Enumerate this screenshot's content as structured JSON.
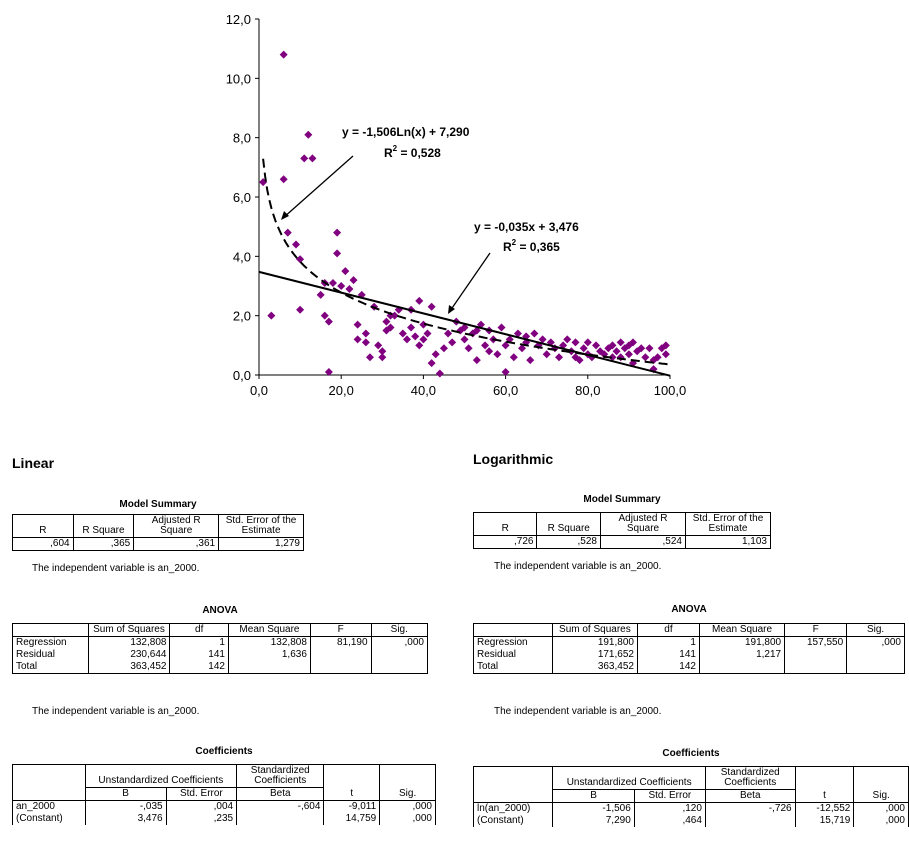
{
  "chart_data": {
    "type": "scatter",
    "xlim": [
      0,
      100
    ],
    "ylim": [
      0,
      12
    ],
    "x_ticks": [
      "0,0",
      "20,0",
      "40,0",
      "60,0",
      "80,0",
      "100,0"
    ],
    "y_ticks": [
      "0,0",
      "2,0",
      "4,0",
      "6,0",
      "8,0",
      "10,0",
      "12,0"
    ],
    "marker_color": "#800080",
    "points": [
      [
        1,
        6.5
      ],
      [
        3,
        2.0
      ],
      [
        6,
        10.8
      ],
      [
        6,
        6.6
      ],
      [
        7,
        4.8
      ],
      [
        9,
        4.4
      ],
      [
        10,
        3.9
      ],
      [
        10,
        2.2
      ],
      [
        11,
        7.3
      ],
      [
        12,
        8.1
      ],
      [
        13,
        7.3
      ],
      [
        15,
        2.7
      ],
      [
        16,
        2.0
      ],
      [
        16,
        3.1
      ],
      [
        17,
        1.8
      ],
      [
        17,
        0.1
      ],
      [
        18,
        3.1
      ],
      [
        19,
        4.8
      ],
      [
        19,
        4.1
      ],
      [
        20,
        3.0
      ],
      [
        21,
        3.5
      ],
      [
        22,
        2.9
      ],
      [
        23,
        3.2
      ],
      [
        24,
        1.7
      ],
      [
        24,
        1.2
      ],
      [
        25,
        2.7
      ],
      [
        26,
        1.4
      ],
      [
        26,
        1.1
      ],
      [
        27,
        0.6
      ],
      [
        28,
        2.3
      ],
      [
        29,
        1.0
      ],
      [
        30,
        0.6
      ],
      [
        30,
        0.8
      ],
      [
        31,
        1.8
      ],
      [
        31,
        1.5
      ],
      [
        32,
        2.0
      ],
      [
        32,
        1.6
      ],
      [
        33,
        2.0
      ],
      [
        34,
        2.2
      ],
      [
        35,
        1.4
      ],
      [
        36,
        1.2
      ],
      [
        37,
        2.2
      ],
      [
        37,
        1.6
      ],
      [
        38,
        1.3
      ],
      [
        39,
        1.0
      ],
      [
        39,
        2.5
      ],
      [
        40,
        1.7
      ],
      [
        40,
        1.2
      ],
      [
        41,
        1.4
      ],
      [
        42,
        0.4
      ],
      [
        42,
        2.3
      ],
      [
        43,
        0.7
      ],
      [
        44,
        0.05
      ],
      [
        45,
        0.9
      ],
      [
        46,
        1.4
      ],
      [
        47,
        1.1
      ],
      [
        48,
        1.8
      ],
      [
        49,
        1.5
      ],
      [
        50,
        1.6
      ],
      [
        50,
        1.2
      ],
      [
        51,
        0.9
      ],
      [
        52,
        1.4
      ],
      [
        53,
        1.5
      ],
      [
        53,
        0.5
      ],
      [
        54,
        1.7
      ],
      [
        55,
        1.0
      ],
      [
        56,
        1.5
      ],
      [
        56,
        0.8
      ],
      [
        57,
        1.2
      ],
      [
        58,
        0.7
      ],
      [
        59,
        1.6
      ],
      [
        60,
        0.1
      ],
      [
        60,
        1.0
      ],
      [
        61,
        1.2
      ],
      [
        62,
        0.6
      ],
      [
        63,
        1.4
      ],
      [
        64,
        0.9
      ],
      [
        65,
        1.1
      ],
      [
        65,
        1.3
      ],
      [
        66,
        0.5
      ],
      [
        67,
        1.4
      ],
      [
        68,
        1.0
      ],
      [
        69,
        1.2
      ],
      [
        70,
        0.7
      ],
      [
        71,
        1.1
      ],
      [
        72,
        0.9
      ],
      [
        73,
        0.6
      ],
      [
        74,
        1.0
      ],
      [
        75,
        1.2
      ],
      [
        76,
        0.8
      ],
      [
        77,
        1.1
      ],
      [
        77,
        0.6
      ],
      [
        78,
        0.5
      ],
      [
        79,
        0.9
      ],
      [
        80,
        1.1
      ],
      [
        80,
        0.7
      ],
      [
        81,
        0.6
      ],
      [
        82,
        1.0
      ],
      [
        83,
        0.8
      ],
      [
        84,
        0.7
      ],
      [
        85,
        0.9
      ],
      [
        86,
        1.0
      ],
      [
        86,
        0.6
      ],
      [
        87,
        0.8
      ],
      [
        88,
        1.1
      ],
      [
        88,
        0.6
      ],
      [
        89,
        0.9
      ],
      [
        90,
        1.0
      ],
      [
        90,
        0.7
      ],
      [
        91,
        0.4
      ],
      [
        91,
        1.1
      ],
      [
        92,
        0.8
      ],
      [
        93,
        0.9
      ],
      [
        94,
        0.6
      ],
      [
        95,
        0.9
      ],
      [
        96,
        0.5
      ],
      [
        96,
        0.2
      ],
      [
        97,
        0.6
      ],
      [
        98,
        0.9
      ],
      [
        99,
        0.7
      ],
      [
        99,
        1.0
      ]
    ],
    "trendlines": [
      {
        "kind": "logarithmic",
        "a": -1.506,
        "b": 7.29,
        "style": "dashed",
        "equation": "y = -1,506Ln(x) + 7,290",
        "r2_label": "R",
        "r2_sup": "2",
        "r2_value": " = 0,528"
      },
      {
        "kind": "linear",
        "slope": -0.035,
        "intercept": 3.476,
        "style": "solid",
        "equation": "y = -0,035x + 3,476",
        "r2_label": "R",
        "r2_sup": "2",
        "r2_value": " = 0,365"
      }
    ]
  },
  "linear": {
    "heading": "Linear",
    "model_summary": {
      "title": "Model Summary",
      "headers": [
        "R",
        "R Square",
        "Adjusted R Square",
        "Std. Error of the Estimate"
      ],
      "row": [
        ",604",
        ",365",
        ",361",
        "1,279"
      ],
      "note": "The independent variable is an_2000."
    },
    "anova": {
      "title": "ANOVA",
      "headers": [
        "",
        "Sum of Squares",
        "df",
        "Mean Square",
        "F",
        "Sig."
      ],
      "rows": [
        [
          "Regression",
          "132,808",
          "1",
          "132,808",
          "81,190",
          ",000"
        ],
        [
          "Residual",
          "230,644",
          "141",
          "1,636",
          "",
          ""
        ],
        [
          "Total",
          "363,452",
          "142",
          "",
          "",
          ""
        ]
      ],
      "note": "The independent variable is an_2000."
    },
    "coefficients": {
      "title": "Coefficients",
      "group_unstd": "Unstandardized Coefficients",
      "group_std": "Standardized Coefficients",
      "headers": [
        "B",
        "Std. Error",
        "Beta",
        "t",
        "Sig."
      ],
      "rows": [
        [
          "an_2000",
          "-,035",
          ",004",
          "-,604",
          "-9,011",
          ",000"
        ],
        [
          "(Constant)",
          "3,476",
          ",235",
          "",
          "14,759",
          ",000"
        ]
      ]
    }
  },
  "logarithmic": {
    "heading": "Logarithmic",
    "model_summary": {
      "title": "Model Summary",
      "headers": [
        "R",
        "R Square",
        "Adjusted R Square",
        "Std. Error of the Estimate"
      ],
      "row": [
        ",726",
        ",528",
        ",524",
        "1,103"
      ],
      "note": "The independent variable is an_2000."
    },
    "anova": {
      "title": "ANOVA",
      "headers": [
        "",
        "Sum of Squares",
        "df",
        "Mean Square",
        "F",
        "Sig."
      ],
      "rows": [
        [
          "Regression",
          "191,800",
          "1",
          "191,800",
          "157,550",
          ",000"
        ],
        [
          "Residual",
          "171,652",
          "141",
          "1,217",
          "",
          ""
        ],
        [
          "Total",
          "363,452",
          "142",
          "",
          "",
          ""
        ]
      ],
      "note": "The independent variable is an_2000."
    },
    "coefficients": {
      "title": "Coefficients",
      "group_unstd": "Unstandardized Coefficients",
      "group_std": "Standardized Coefficients",
      "headers": [
        "B",
        "Std. Error",
        "Beta",
        "t",
        "Sig."
      ],
      "rows": [
        [
          "ln(an_2000)",
          "-1,506",
          ",120",
          "-,726",
          "-12,552",
          ",000"
        ],
        [
          "(Constant)",
          "7,290",
          ",464",
          "",
          "15,719",
          ",000"
        ]
      ]
    }
  }
}
